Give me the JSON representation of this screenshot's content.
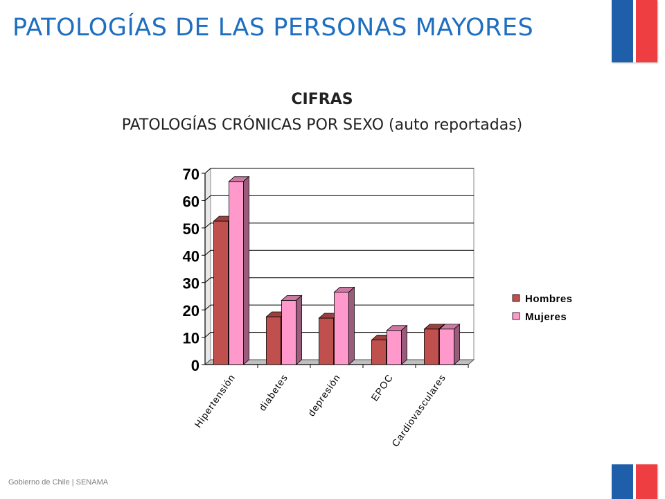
{
  "slide": {
    "title": "PATOLOGÍAS DE LAS PERSONAS MAYORES",
    "subtitle_line1": "CIFRAS",
    "subtitle_line2": "PATOLOGÍAS CRÓNICAS POR SEXO (auto reportadas)",
    "footer": "Gobierno de Chile | SENAMA",
    "flag_colors": {
      "blue": "#1f5ea8",
      "red": "#ef3e42"
    }
  },
  "chart_data": {
    "type": "bar",
    "style": "3d-clustered",
    "categories": [
      "Hipertensión",
      "diabetes",
      "depresión",
      "EPOC",
      "Cardiovasculares"
    ],
    "series": [
      {
        "name": "Hombres",
        "values": [
          52.5,
          17.5,
          17,
          9,
          13
        ],
        "color": "#c0504d"
      },
      {
        "name": "Mujeres",
        "values": [
          67,
          23.5,
          26.5,
          12.5,
          13
        ],
        "color": "#ff99cc"
      }
    ],
    "yticks": [
      "0",
      "10",
      "20",
      "30",
      "40",
      "50",
      "60",
      "70"
    ],
    "ylim": [
      0,
      70
    ],
    "grid": true,
    "legend_position": "right"
  }
}
